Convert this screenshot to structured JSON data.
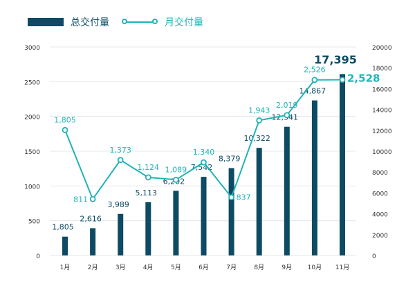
{
  "legend": {
    "bar_label": "总交付量",
    "line_label": "月交付量"
  },
  "colors": {
    "bar": "#0d4a63",
    "line": "#1fb3b8",
    "grid": "#e3e7ea",
    "axis_text": "#333333"
  },
  "chart_data": {
    "type": "bar",
    "categories": [
      "1月",
      "2月",
      "3月",
      "4月",
      "5月",
      "6月",
      "7月",
      "8月",
      "9月",
      "10月",
      "11月"
    ],
    "series": [
      {
        "name": "总交付量",
        "type": "bar",
        "axis": "right",
        "values": [
          1805,
          2616,
          3989,
          5113,
          6202,
          7542,
          8379,
          10322,
          12341,
          14867,
          17395
        ],
        "labels": [
          "1,805",
          "2,616",
          "3,989",
          "5,113",
          "6,202",
          "7,542",
          "8,379",
          "10,322",
          "12,341",
          "14,867",
          "17,395"
        ]
      },
      {
        "name": "月交付量",
        "type": "line",
        "axis": "left",
        "values": [
          1805,
          811,
          1373,
          1124,
          1089,
          1340,
          837,
          1943,
          2019,
          2526,
          2528
        ],
        "labels": [
          "1,805",
          "811",
          "1,373",
          "1,124",
          "1,089",
          "1,340",
          "837",
          "1,943",
          "2,019",
          "2,526",
          "2,528"
        ]
      }
    ],
    "y_left": {
      "min": 0,
      "max": 3000,
      "ticks": [
        0,
        500,
        1000,
        1500,
        2000,
        2500,
        3000
      ]
    },
    "y_right": {
      "min": 0,
      "max": 20000,
      "ticks": [
        0,
        2000,
        4000,
        6000,
        8000,
        10000,
        12000,
        14000,
        16000,
        18000,
        20000
      ]
    },
    "grid": true,
    "legend_position": "top-left"
  }
}
